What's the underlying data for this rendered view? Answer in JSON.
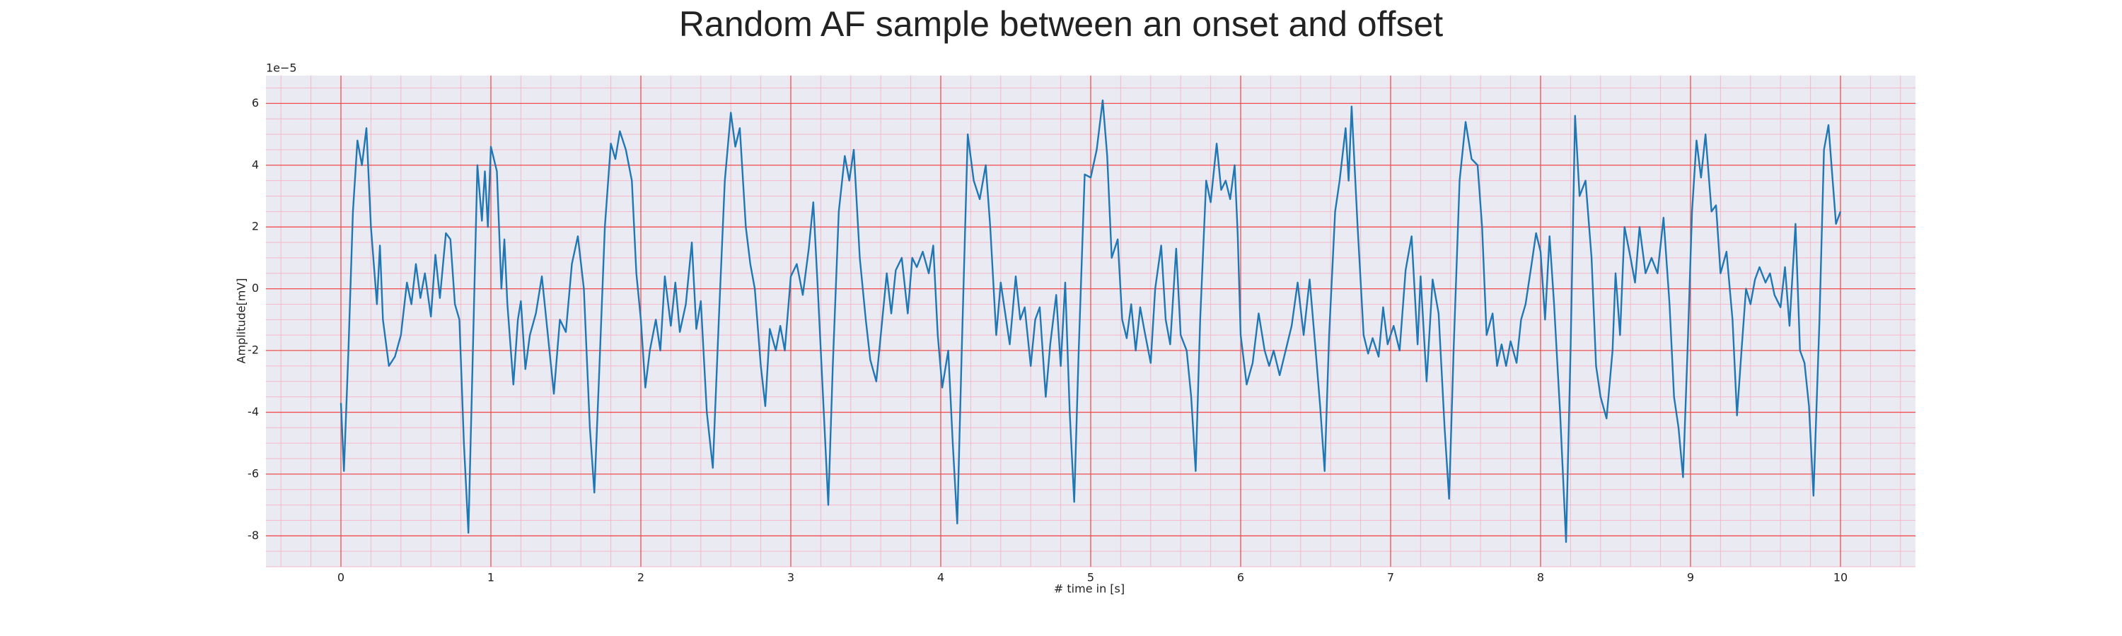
{
  "chart_data": {
    "type": "line",
    "title": "Random AF sample between an onset and offset",
    "x_label": "# time in [s]",
    "y_label": "Amplitude[mV]",
    "y_offset_label": "1e−5",
    "color": "#1f77b4",
    "grid": true,
    "minor_grid": true,
    "xlim": [
      -0.5,
      10.5
    ],
    "ylim": [
      -9.0,
      6.9
    ],
    "xticks": [
      0,
      1,
      2,
      3,
      4,
      5,
      6,
      7,
      8,
      9,
      10
    ],
    "yticks": [
      -8,
      -6,
      -4,
      -2,
      0,
      2,
      4,
      6
    ],
    "x": [
      0,
      0.02,
      0.05,
      0.08,
      0.11,
      0.14,
      0.17,
      0.2,
      0.24,
      0.26,
      0.28,
      0.32,
      0.36,
      0.4,
      0.44,
      0.47,
      0.5,
      0.53,
      0.56,
      0.6,
      0.63,
      0.66,
      0.7,
      0.73,
      0.76,
      0.79,
      0.82,
      0.85,
      0.88,
      0.91,
      0.94,
      0.96,
      0.98,
      1.0,
      1.04,
      1.07,
      1.09,
      1.11,
      1.15,
      1.18,
      1.2,
      1.23,
      1.26,
      1.3,
      1.34,
      1.38,
      1.42,
      1.46,
      1.5,
      1.54,
      1.58,
      1.62,
      1.66,
      1.69,
      1.72,
      1.76,
      1.8,
      1.83,
      1.86,
      1.9,
      1.94,
      1.97,
      2.0,
      2.03,
      2.06,
      2.1,
      2.13,
      2.16,
      2.2,
      2.23,
      2.26,
      2.3,
      2.34,
      2.37,
      2.4,
      2.44,
      2.48,
      2.52,
      2.56,
      2.6,
      2.63,
      2.66,
      2.7,
      2.73,
      2.76,
      2.8,
      2.83,
      2.86,
      2.9,
      2.93,
      2.96,
      3.0,
      3.04,
      3.08,
      3.12,
      3.15,
      3.18,
      3.22,
      3.25,
      3.28,
      3.32,
      3.36,
      3.39,
      3.42,
      3.46,
      3.5,
      3.53,
      3.57,
      3.6,
      3.64,
      3.67,
      3.7,
      3.74,
      3.78,
      3.81,
      3.84,
      3.88,
      3.92,
      3.95,
      3.98,
      4.01,
      4.05,
      4.08,
      4.11,
      4.14,
      4.18,
      4.22,
      4.26,
      4.3,
      4.33,
      4.37,
      4.4,
      4.43,
      4.46,
      4.5,
      4.53,
      4.56,
      4.6,
      4.63,
      4.66,
      4.7,
      4.73,
      4.77,
      4.8,
      4.83,
      4.86,
      4.89,
      4.92,
      4.96,
      5.0,
      5.04,
      5.08,
      5.11,
      5.14,
      5.18,
      5.21,
      5.24,
      5.27,
      5.3,
      5.33,
      5.36,
      5.4,
      5.43,
      5.47,
      5.5,
      5.53,
      5.57,
      5.6,
      5.64,
      5.67,
      5.7,
      5.73,
      5.77,
      5.8,
      5.84,
      5.87,
      5.9,
      5.93,
      5.96,
      5.98,
      6.0,
      6.04,
      6.08,
      6.12,
      6.16,
      6.19,
      6.22,
      6.26,
      6.3,
      6.34,
      6.38,
      6.42,
      6.46,
      6.5,
      6.53,
      6.56,
      6.59,
      6.63,
      6.66,
      6.7,
      6.72,
      6.74,
      6.78,
      6.82,
      6.85,
      6.88,
      6.92,
      6.95,
      6.98,
      7.02,
      7.06,
      7.1,
      7.14,
      7.18,
      7.2,
      7.24,
      7.28,
      7.32,
      7.36,
      7.39,
      7.42,
      7.46,
      7.5,
      7.54,
      7.58,
      7.61,
      7.64,
      7.68,
      7.71,
      7.74,
      7.77,
      7.8,
      7.84,
      7.87,
      7.9,
      7.94,
      7.97,
      8.0,
      8.03,
      8.06,
      8.09,
      8.13,
      8.17,
      8.2,
      8.23,
      8.26,
      8.3,
      8.34,
      8.37,
      8.4,
      8.44,
      8.48,
      8.5,
      8.53,
      8.56,
      8.6,
      8.63,
      8.66,
      8.7,
      8.74,
      8.78,
      8.82,
      8.86,
      8.89,
      8.92,
      8.95,
      8.98,
      9.01,
      9.04,
      9.07,
      9.1,
      9.14,
      9.17,
      9.2,
      9.24,
      9.28,
      9.31,
      9.34,
      9.37,
      9.4,
      9.43,
      9.46,
      9.5,
      9.53,
      9.56,
      9.6,
      9.63,
      9.66,
      9.7,
      9.73,
      9.76,
      9.79,
      9.82,
      9.86,
      9.89,
      9.92,
      9.94,
      9.97,
      10.0
    ],
    "values": [
      -3.7,
      -5.9,
      -2,
      2.5,
      4.8,
      4.0,
      5.2,
      2,
      -0.5,
      1.4,
      -1,
      -2.5,
      -2.2,
      -1.5,
      0.2,
      -0.5,
      0.8,
      -0.3,
      0.5,
      -0.9,
      1.1,
      -0.3,
      1.8,
      1.6,
      -0.5,
      -1,
      -5,
      -7.9,
      -2,
      4,
      2.2,
      3.8,
      2,
      4.6,
      3.8,
      0,
      1.6,
      -0.5,
      -3.1,
      -1,
      -0.4,
      -2.6,
      -1.5,
      -0.8,
      0.4,
      -1.5,
      -3.4,
      -1,
      -1.4,
      0.8,
      1.7,
      0,
      -4.5,
      -6.6,
      -3,
      2,
      4.7,
      4.2,
      5.1,
      4.5,
      3.5,
      0.5,
      -1,
      -3.2,
      -2,
      -1,
      -2,
      0.4,
      -1.2,
      0.2,
      -1.4,
      -0.5,
      1.5,
      -1.3,
      -0.4,
      -4,
      -5.8,
      -1,
      3.5,
      5.7,
      4.6,
      5.2,
      2,
      0.8,
      0,
      -2.5,
      -3.8,
      -1.3,
      -2,
      -1.2,
      -2,
      0.4,
      0.8,
      -0.2,
      1.3,
      2.8,
      0,
      -4,
      -7,
      -2.5,
      2.5,
      4.3,
      3.5,
      4.5,
      1,
      -1,
      -2.3,
      -3,
      -1.5,
      0.5,
      -0.8,
      0.6,
      1,
      -0.8,
      1,
      0.7,
      1.2,
      0.5,
      1.4,
      -1.5,
      -3.2,
      -2,
      -5,
      -7.6,
      -2,
      5,
      3.5,
      2.9,
      4,
      2,
      -1.5,
      0.2,
      -0.8,
      -1.8,
      0.4,
      -1,
      -0.6,
      -2.5,
      -1,
      -0.6,
      -3.5,
      -1.8,
      -0.2,
      -2.5,
      0.2,
      -4,
      -6.9,
      -2,
      3.7,
      3.6,
      4.5,
      6.1,
      4.3,
      1,
      1.6,
      -1,
      -1.6,
      -0.5,
      -2,
      -0.6,
      -1.4,
      -2.4,
      0,
      1.4,
      -1,
      -1.8,
      1.3,
      -1.5,
      -2,
      -3.5,
      -5.9,
      -1,
      3.5,
      2.8,
      4.7,
      3.2,
      3.5,
      2.9,
      4,
      1.8,
      -1.5,
      -3.1,
      -2.4,
      -0.8,
      -2,
      -2.5,
      -2,
      -2.8,
      -2,
      -1.2,
      0.2,
      -1.5,
      0.3,
      -2,
      -3.8,
      -5.9,
      -1.5,
      2.5,
      3.5,
      5.2,
      3.5,
      5.9,
      2,
      -1.5,
      -2.1,
      -1.6,
      -2.2,
      -0.6,
      -1.8,
      -1.2,
      -2,
      0.6,
      1.7,
      -1.8,
      0.4,
      -3,
      0.3,
      -0.8,
      -4.5,
      -6.8,
      -2,
      3.5,
      5.4,
      4.2,
      4,
      2,
      -1.5,
      -0.8,
      -2.5,
      -1.8,
      -2.5,
      -1.7,
      -2.4,
      -1,
      -0.5,
      0.8,
      1.8,
      1.2,
      -1,
      1.7,
      -0.5,
      -4,
      -8.2,
      -2,
      5.6,
      3,
      3.5,
      1,
      -2.5,
      -3.5,
      -4.2,
      -2,
      0.5,
      -1.5,
      2,
      1,
      0.2,
      2,
      0.5,
      1,
      0.5,
      2.3,
      -0.5,
      -3.5,
      -4.5,
      -6.1,
      -2,
      2.5,
      4.8,
      3.6,
      5.0,
      2.5,
      2.7,
      0.5,
      1.2,
      -1,
      -4.1,
      -2,
      0,
      -0.5,
      0.3,
      0.7,
      0.2,
      0.5,
      -0.2,
      -0.6,
      0.7,
      -1.2,
      2.1,
      -2,
      -2.4,
      -3.8,
      -6.7,
      -1,
      4.5,
      5.3,
      4,
      2.1,
      2.5
    ]
  }
}
